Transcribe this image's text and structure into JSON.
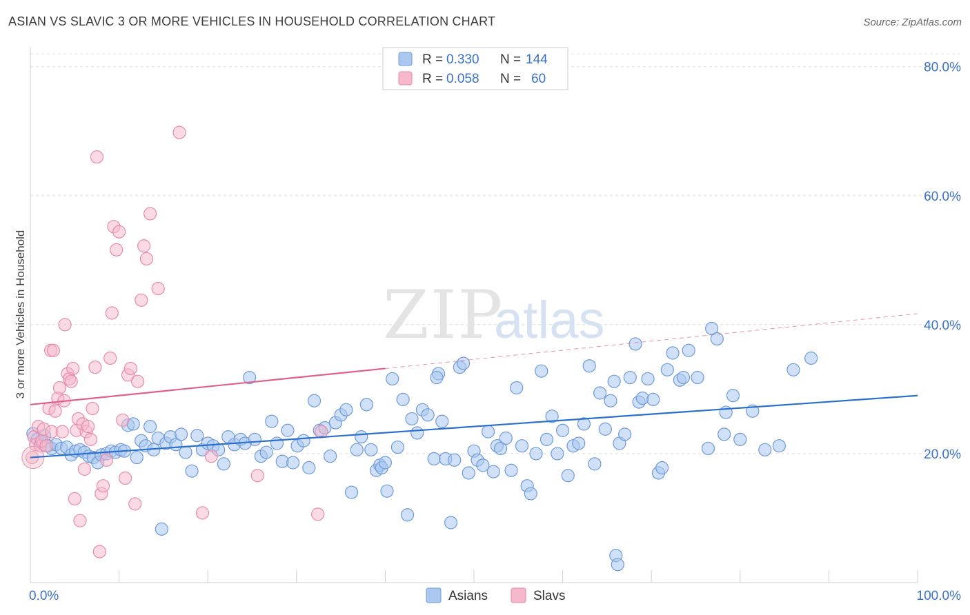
{
  "title": "ASIAN VS SLAVIC 3 OR MORE VEHICLES IN HOUSEHOLD CORRELATION CHART",
  "source": "Source: ZipAtlas.com",
  "watermark": {
    "zip": "ZIP",
    "atlas": "atlas"
  },
  "colors": {
    "asian_fill": "#aac8f0",
    "asian_stroke": "#6e9ad8",
    "asian_line": "#2a6fce",
    "slav_fill": "#f6b8cb",
    "slav_stroke": "#e88aaa",
    "slav_line": "#e0608c",
    "axis_text": "#3a72c8",
    "grid": "#dcdcdc"
  },
  "legend": {
    "rows": [
      {
        "r_label": "R = ",
        "r_value": "0.330",
        "n_label": "N = ",
        "n_value": "144"
      },
      {
        "r_label": "R = ",
        "r_value": "0.058",
        "n_label": "N = ",
        "n_value": "60"
      }
    ]
  },
  "bottom_legend": {
    "asians": "Asians",
    "slavs": "Slavs"
  },
  "chart_data": {
    "type": "scatter",
    "xlabel": "",
    "ylabel": "3 or more Vehicles in Household",
    "xlim": [
      0,
      100
    ],
    "ylim": [
      0,
      82
    ],
    "x_tick_labels": {
      "left": "0.0%",
      "right": "100.0%"
    },
    "y_ticks": [
      20,
      40,
      60,
      80
    ],
    "y_tick_labels": [
      "20.0%",
      "40.0%",
      "60.0%",
      "80.0%"
    ],
    "grid": "horizontal-dashed",
    "legend_placement": "top-center",
    "series": [
      {
        "name": "Asians",
        "r": 0.33,
        "n": 144,
        "trend": {
          "x0": 0,
          "y0": 19.4,
          "x1": 100,
          "y1": 29.0
        },
        "points": [
          [
            0.3,
            23.1
          ],
          [
            0.8,
            22.2
          ],
          [
            1.2,
            21.8
          ],
          [
            1.6,
            22.8
          ],
          [
            2.0,
            21.2
          ],
          [
            2.4,
            20.8
          ],
          [
            2.9,
            21.4
          ],
          [
            3.5,
            20.8
          ],
          [
            4.1,
            21.0
          ],
          [
            4.6,
            19.8
          ],
          [
            5.1,
            20.4
          ],
          [
            5.6,
            20.6
          ],
          [
            6.1,
            20.2
          ],
          [
            6.6,
            19.6
          ],
          [
            7.1,
            19.4
          ],
          [
            7.6,
            18.6
          ],
          [
            8.0,
            19.8
          ],
          [
            8.6,
            20.0
          ],
          [
            9.1,
            20.4
          ],
          [
            9.6,
            20.2
          ],
          [
            10.2,
            20.6
          ],
          [
            10.6,
            20.4
          ],
          [
            11.0,
            24.4
          ],
          [
            11.6,
            24.6
          ],
          [
            12.0,
            19.4
          ],
          [
            12.5,
            22.0
          ],
          [
            13.0,
            21.2
          ],
          [
            13.5,
            24.2
          ],
          [
            13.9,
            20.6
          ],
          [
            14.4,
            22.4
          ],
          [
            14.8,
            8.3
          ],
          [
            15.3,
            21.6
          ],
          [
            15.8,
            22.6
          ],
          [
            16.4,
            21.4
          ],
          [
            17.0,
            23.0
          ],
          [
            17.5,
            20.2
          ],
          [
            18.2,
            17.3
          ],
          [
            18.8,
            22.8
          ],
          [
            19.4,
            20.6
          ],
          [
            20.0,
            21.6
          ],
          [
            20.6,
            21.2
          ],
          [
            21.2,
            20.6
          ],
          [
            21.8,
            18.4
          ],
          [
            22.3,
            22.6
          ],
          [
            23.0,
            21.4
          ],
          [
            23.7,
            22.2
          ],
          [
            24.2,
            21.6
          ],
          [
            24.7,
            31.8
          ],
          [
            25.3,
            22.2
          ],
          [
            26.0,
            19.6
          ],
          [
            26.6,
            20.2
          ],
          [
            27.2,
            25.0
          ],
          [
            27.8,
            21.6
          ],
          [
            28.4,
            18.8
          ],
          [
            29.0,
            23.6
          ],
          [
            29.6,
            18.6
          ],
          [
            30.1,
            21.2
          ],
          [
            30.8,
            22.0
          ],
          [
            31.4,
            17.8
          ],
          [
            32.0,
            28.2
          ],
          [
            32.6,
            23.6
          ],
          [
            33.2,
            24.0
          ],
          [
            33.8,
            19.6
          ],
          [
            34.4,
            24.8
          ],
          [
            35.0,
            26.0
          ],
          [
            35.6,
            26.8
          ],
          [
            36.2,
            14.0
          ],
          [
            36.8,
            20.6
          ],
          [
            37.3,
            22.6
          ],
          [
            37.9,
            27.6
          ],
          [
            38.4,
            20.6
          ],
          [
            39.0,
            17.4
          ],
          [
            39.4,
            18.2
          ],
          [
            39.6,
            17.8
          ],
          [
            40.2,
            14.2
          ],
          [
            40.8,
            31.6
          ],
          [
            41.4,
            21.0
          ],
          [
            42.0,
            28.4
          ],
          [
            42.5,
            10.5
          ],
          [
            43.0,
            25.4
          ],
          [
            43.6,
            23.2
          ],
          [
            44.2,
            26.8
          ],
          [
            44.8,
            26.0
          ],
          [
            45.5,
            19.2
          ],
          [
            46.0,
            32.4
          ],
          [
            46.4,
            25.0
          ],
          [
            46.8,
            19.2
          ],
          [
            47.4,
            9.3
          ],
          [
            47.8,
            19.0
          ],
          [
            48.4,
            33.4
          ],
          [
            48.8,
            34.0
          ],
          [
            49.4,
            17.0
          ],
          [
            50.0,
            20.4
          ],
          [
            50.4,
            19.0
          ],
          [
            51.0,
            18.2
          ],
          [
            51.6,
            23.4
          ],
          [
            52.2,
            17.2
          ],
          [
            52.6,
            21.2
          ],
          [
            53.0,
            20.8
          ],
          [
            53.6,
            22.4
          ],
          [
            54.2,
            17.4
          ],
          [
            54.8,
            30.2
          ],
          [
            55.4,
            21.2
          ],
          [
            56.0,
            15.0
          ],
          [
            56.4,
            13.8
          ],
          [
            57.0,
            20.0
          ],
          [
            57.6,
            32.8
          ],
          [
            58.2,
            22.2
          ],
          [
            58.8,
            25.8
          ],
          [
            59.4,
            20.0
          ],
          [
            60.0,
            23.6
          ],
          [
            60.6,
            16.6
          ],
          [
            61.2,
            21.2
          ],
          [
            61.8,
            21.6
          ],
          [
            62.4,
            24.6
          ],
          [
            63.0,
            33.6
          ],
          [
            63.6,
            18.4
          ],
          [
            64.2,
            29.4
          ],
          [
            64.8,
            23.8
          ],
          [
            65.4,
            28.2
          ],
          [
            65.8,
            31.2
          ],
          [
            66.4,
            21.6
          ],
          [
            67.0,
            23.0
          ],
          [
            67.6,
            31.8
          ],
          [
            68.2,
            37.0
          ],
          [
            68.6,
            28.0
          ],
          [
            69.0,
            28.6
          ],
          [
            69.6,
            31.6
          ],
          [
            70.2,
            28.4
          ],
          [
            70.8,
            17.0
          ],
          [
            71.2,
            17.8
          ],
          [
            71.8,
            33.0
          ],
          [
            72.4,
            35.6
          ],
          [
            73.2,
            31.4
          ],
          [
            73.6,
            31.8
          ],
          [
            74.2,
            36.0
          ],
          [
            75.2,
            31.8
          ],
          [
            76.4,
            20.8
          ],
          [
            76.8,
            39.4
          ],
          [
            77.4,
            37.8
          ],
          [
            78.2,
            23.0
          ],
          [
            78.4,
            26.4
          ],
          [
            79.2,
            29.0
          ],
          [
            80.0,
            22.2
          ],
          [
            81.4,
            26.6
          ],
          [
            82.8,
            20.6
          ],
          [
            84.4,
            21.2
          ],
          [
            86.0,
            33.0
          ],
          [
            88.0,
            34.8
          ],
          [
            66.0,
            4.2
          ],
          [
            66.2,
            2.8
          ],
          [
            45.8,
            31.8
          ],
          [
            40.0,
            18.6
          ]
        ]
      },
      {
        "name": "Slavs",
        "r": 0.058,
        "n": 60,
        "trend_solid": {
          "x0": 0,
          "y0": 27.6,
          "x1": 40,
          "y1": 33.2
        },
        "trend_dashed": {
          "x0": 40,
          "y0": 33.2,
          "x1": 100,
          "y1": 41.7
        },
        "points": [
          [
            0.2,
            19.4
          ],
          [
            0.4,
            22.6
          ],
          [
            0.6,
            21.4
          ],
          [
            0.9,
            24.2
          ],
          [
            1.1,
            21.2
          ],
          [
            1.3,
            22.0
          ],
          [
            1.5,
            23.8
          ],
          [
            1.8,
            21.2
          ],
          [
            2.1,
            27.0
          ],
          [
            2.3,
            36.0
          ],
          [
            2.4,
            23.4
          ],
          [
            2.6,
            36.0
          ],
          [
            2.8,
            26.6
          ],
          [
            3.1,
            28.6
          ],
          [
            3.3,
            30.2
          ],
          [
            3.6,
            23.4
          ],
          [
            3.8,
            28.2
          ],
          [
            3.9,
            40.0
          ],
          [
            4.2,
            32.4
          ],
          [
            4.4,
            31.6
          ],
          [
            4.6,
            31.2
          ],
          [
            4.8,
            33.2
          ],
          [
            5.0,
            13.0
          ],
          [
            5.2,
            23.6
          ],
          [
            5.4,
            25.4
          ],
          [
            5.6,
            9.6
          ],
          [
            5.9,
            24.6
          ],
          [
            6.1,
            17.6
          ],
          [
            6.3,
            23.4
          ],
          [
            6.5,
            24.2
          ],
          [
            6.8,
            22.2
          ],
          [
            7.0,
            27.0
          ],
          [
            7.3,
            33.4
          ],
          [
            7.5,
            66.0
          ],
          [
            7.8,
            4.8
          ],
          [
            8.0,
            13.8
          ],
          [
            8.2,
            15.0
          ],
          [
            8.6,
            19.0
          ],
          [
            9.0,
            34.8
          ],
          [
            9.2,
            41.8
          ],
          [
            9.4,
            55.2
          ],
          [
            9.7,
            51.6
          ],
          [
            10.0,
            54.4
          ],
          [
            10.4,
            25.2
          ],
          [
            10.7,
            16.2
          ],
          [
            11.0,
            32.2
          ],
          [
            11.3,
            33.2
          ],
          [
            11.8,
            12.2
          ],
          [
            12.1,
            31.2
          ],
          [
            12.5,
            43.8
          ],
          [
            12.8,
            52.2
          ],
          [
            13.1,
            50.2
          ],
          [
            13.5,
            57.2
          ],
          [
            14.4,
            45.6
          ],
          [
            16.8,
            69.8
          ],
          [
            19.4,
            10.8
          ],
          [
            20.4,
            19.6
          ],
          [
            25.6,
            16.6
          ],
          [
            32.4,
            10.6
          ],
          [
            32.8,
            23.4
          ]
        ]
      }
    ]
  }
}
